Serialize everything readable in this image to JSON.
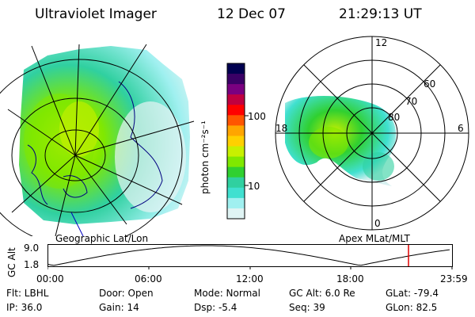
{
  "header": {
    "title": "Ultraviolet Imager",
    "date": "12 Dec 07",
    "time": "21:29:13 UT"
  },
  "geo_panel": {
    "label": "Geographic Lat/Lon"
  },
  "apex_panel": {
    "label": "Apex  MLat/MLT",
    "mlt_labels": {
      "top": "12",
      "right": "6",
      "bottom": "0",
      "left": "18"
    },
    "mlat_labels": [
      "60",
      "70",
      "80"
    ]
  },
  "colorbar": {
    "unit_label": "photon cm⁻²s⁻¹",
    "tick_labels": [
      "100",
      "10"
    ],
    "colors": [
      "#000050",
      "#3a0066",
      "#7a0080",
      "#c00040",
      "#ff0000",
      "#ff5500",
      "#ffa500",
      "#ffd000",
      "#c8f000",
      "#80e800",
      "#30d030",
      "#30d0a0",
      "#40e0d0",
      "#a0f0f0",
      "#e0f4f4"
    ]
  },
  "altitude_plot": {
    "ylabel": "GC Alt",
    "y_ticks": [
      "9.0",
      "1.8"
    ],
    "x_ticks": [
      "00:00",
      "06:00",
      "12:00",
      "18:00",
      "23:59"
    ],
    "marker_color": "#e00000"
  },
  "info": {
    "flt": "Flt: LBHL",
    "ip": "IP: 36.0",
    "door": "Door: Open",
    "gain": "Gain: 14",
    "mode": "Mode: Normal",
    "dsp": "Dsp:    -5.4",
    "gcalt": "GC Alt: 6.0 Re",
    "seq": "Seq: 39",
    "glat": "GLat: -79.4",
    "glon": "GLon:  82.5"
  }
}
